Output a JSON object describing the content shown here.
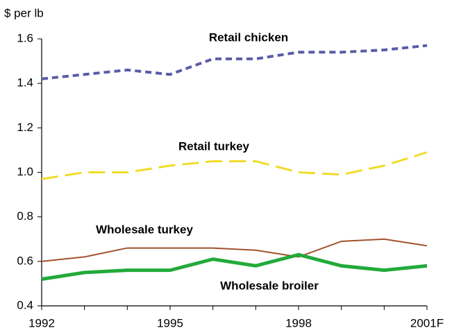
{
  "chart_data": {
    "type": "line",
    "y_label": "$ per lb",
    "categories": [
      "1992",
      null,
      null,
      "1995",
      null,
      null,
      "1998",
      null,
      null,
      "2001F"
    ],
    "series": [
      {
        "name": "Retail chicken",
        "color": "#5b5ba8",
        "values": [
          1.42,
          1.44,
          1.46,
          1.44,
          1.51,
          1.51,
          1.54,
          1.54,
          1.55,
          1.57
        ]
      },
      {
        "name": "Retail turkey",
        "color": "#f0dc28",
        "values": [
          0.97,
          1.0,
          1.0,
          1.03,
          1.05,
          1.05,
          1.0,
          0.99,
          1.03,
          1.09
        ]
      },
      {
        "name": "Wholesale turkey",
        "color": "#a0522d",
        "values": [
          0.6,
          0.62,
          0.66,
          0.66,
          0.66,
          0.65,
          0.62,
          0.69,
          0.7,
          0.67
        ]
      },
      {
        "name": "Wholesale broiler",
        "color": "#22aa3a",
        "values": [
          0.52,
          0.55,
          0.56,
          0.56,
          0.61,
          0.58,
          0.63,
          0.58,
          0.56,
          0.58
        ]
      }
    ],
    "ylim": [
      0.4,
      1.6
    ],
    "yticks": [
      0.4,
      0.6,
      0.8,
      {
        "value": 1,
        "label": "1.0"
      },
      1.2,
      1.4,
      1.6
    ],
    "grid": false
  }
}
